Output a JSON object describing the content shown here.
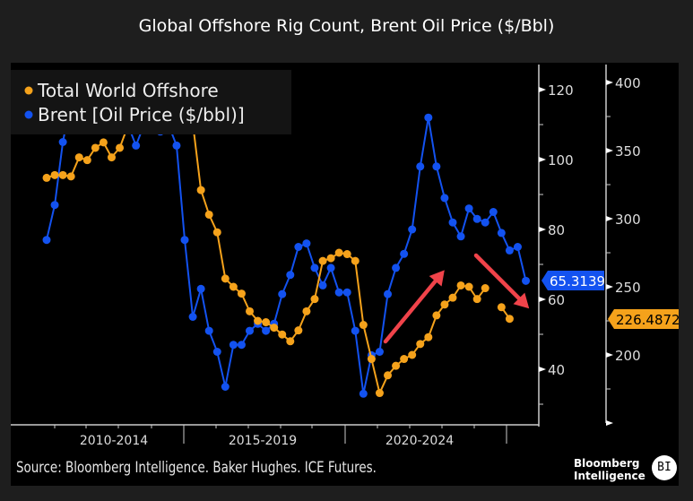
{
  "title": "Global Offshore Rig Count, Brent Oil Price ($/Bbl)",
  "source": "Source: Bloomberg Intelligence. Baker Hughes. ICE Futures.",
  "logo": {
    "line1": "Bloomberg",
    "line2": "Intelligence",
    "badge": "BI"
  },
  "colors": {
    "rigs": "#f5a21b",
    "brent": "#1352f0",
    "arrow": "#f0434a"
  },
  "chart_data": {
    "type": "line",
    "title": "Global Offshore Rig Count, Brent Oil Price ($/Bbl)",
    "x_labels": [
      "2010-2014",
      "2015-2019",
      "2020-2024"
    ],
    "x_note": "quarterly points",
    "legend": {
      "placement": "top-left"
    },
    "series": [
      {
        "name": "Total World Offshore",
        "axis": "right",
        "color": "#f5a21b",
        "last_value": "226.4872",
        "values": [
          330,
          332,
          332,
          331,
          345,
          343,
          352,
          356,
          345,
          352,
          368,
          386,
          380,
          378,
          382,
          384,
          388,
          390,
          370,
          321,
          303,
          290,
          256,
          250,
          245,
          232,
          225,
          224,
          220,
          215,
          210,
          218,
          232,
          241,
          269,
          271,
          275,
          274,
          269,
          222,
          197,
          172,
          185,
          192,
          197,
          200,
          208,
          213,
          229,
          237,
          242,
          251,
          250,
          241,
          249,
          null,
          235,
          226.5,
          null,
          null
        ]
      },
      {
        "name": "Brent [Oil Price ($/bbl)]",
        "axis": "left",
        "color": "#1352f0",
        "last_value": "65.3139",
        "values": [
          77,
          87,
          105,
          117,
          112,
          109,
          119,
          109,
          110,
          110,
          110,
          104,
          110,
          110,
          108,
          110,
          104,
          77,
          55,
          63,
          51,
          45,
          35,
          47,
          47,
          51,
          53,
          51,
          53,
          61.5,
          67,
          75,
          76,
          69,
          64,
          69,
          62,
          62,
          51,
          33,
          44,
          45,
          61.5,
          69,
          73,
          80,
          98,
          112,
          98,
          89,
          82,
          78,
          86,
          83,
          82,
          85,
          79,
          74,
          75,
          65.3
        ]
      }
    ],
    "left_axis": {
      "ticks": [
        "120",
        "100",
        "80",
        "60",
        "40"
      ],
      "range": [
        25,
        125
      ]
    },
    "right_axis": {
      "ticks": [
        "400",
        "350",
        "300",
        "250",
        "200"
      ],
      "range": [
        150,
        410
      ]
    },
    "annotations": [
      "up-arrow",
      "down-arrow"
    ]
  }
}
